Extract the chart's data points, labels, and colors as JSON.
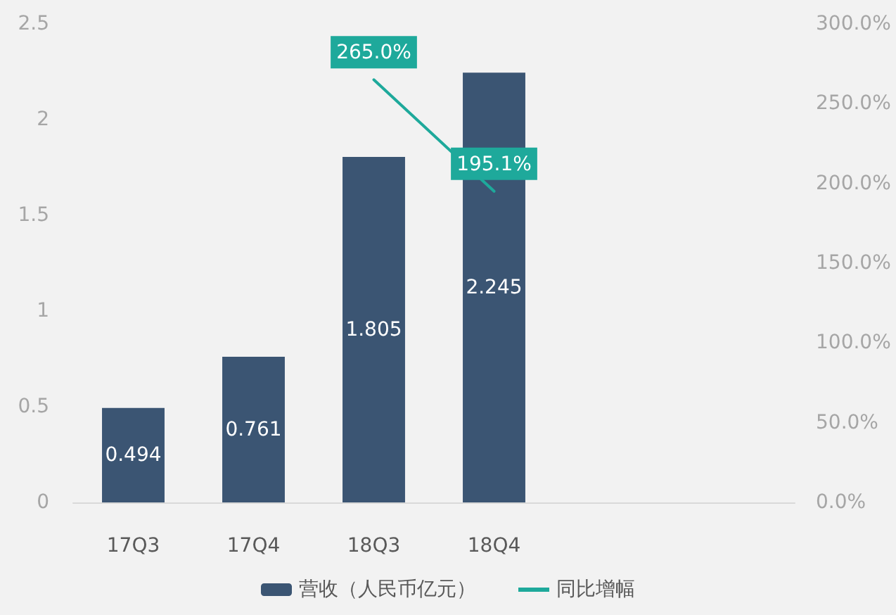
{
  "chart_data": {
    "type": "bar",
    "categories": [
      "17Q3",
      "17Q4",
      "18Q3",
      "18Q4",
      null,
      null
    ],
    "series": [
      {
        "name": "营收（人民币亿元）",
        "color": "#3b5573",
        "values": [
          0.494,
          0.761,
          1.805,
          2.245,
          null,
          null
        ],
        "value_labels": [
          "0.494",
          "0.761",
          "1.805",
          "2.245",
          null,
          null
        ]
      },
      {
        "name": "同比增幅",
        "type": "line",
        "axis": "y2",
        "color": "#1ea99b",
        "values": [
          null,
          null,
          265.0,
          195.1,
          null,
          null
        ],
        "value_labels": [
          null,
          null,
          "265.0%",
          "195.1%",
          null,
          null
        ]
      }
    ],
    "ylim": [
      0,
      2.5
    ],
    "yticks": [
      0,
      0.5,
      1,
      1.5,
      2,
      2.5
    ],
    "y2lim": [
      0,
      300
    ],
    "y2ticks": [
      {
        "value": 0,
        "label": "0.0%"
      },
      {
        "value": 50,
        "label": "50.0%"
      },
      {
        "value": 100,
        "label": "100.0%"
      },
      {
        "value": 150,
        "label": "150.0%"
      },
      {
        "value": 200,
        "label": "200.0%"
      },
      {
        "value": 250,
        "label": "250.0%"
      },
      {
        "value": 300,
        "label": "300.0%"
      }
    ],
    "grid": false,
    "legend": "bottom",
    "marker": "none",
    "line_style": "solid"
  }
}
